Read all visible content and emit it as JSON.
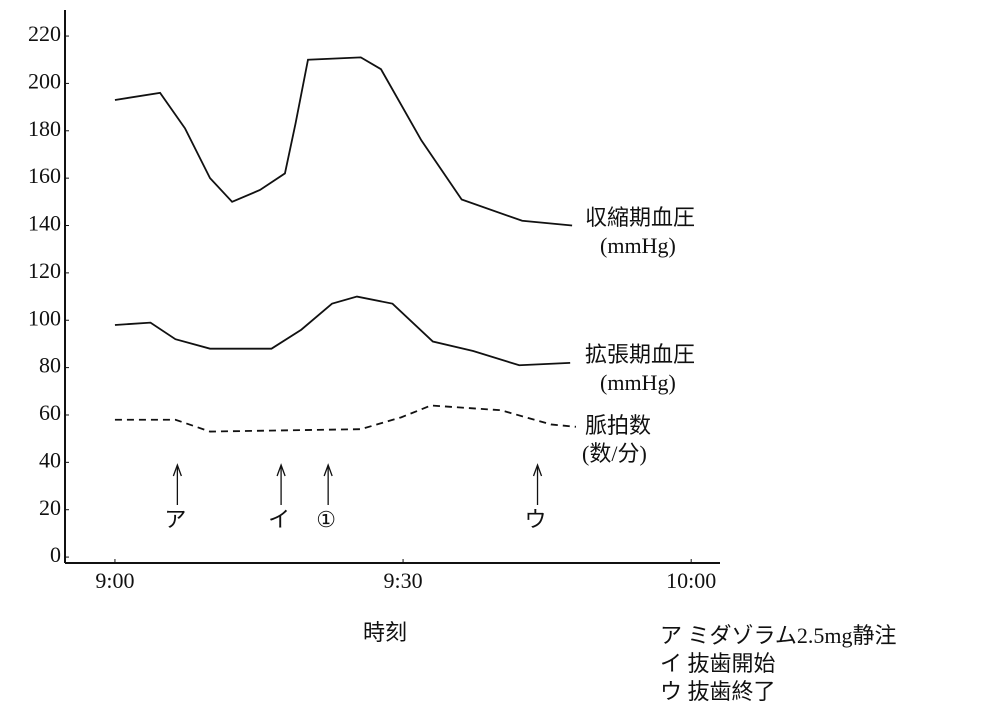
{
  "chart_data": {
    "type": "line",
    "xlabel": "時刻",
    "xlim": [
      -5.2,
      63
    ],
    "xticks": [
      {
        "value": 0,
        "label": "9:00"
      },
      {
        "value": 30,
        "label": "9:30"
      },
      {
        "value": 60,
        "label": "10:00"
      }
    ],
    "ylim": [
      -2.5,
      231
    ],
    "yticks": [
      0,
      20,
      40,
      60,
      80,
      100,
      120,
      140,
      160,
      180,
      200,
      220
    ],
    "series": [
      {
        "name": "収縮期血圧",
        "unit": "(mmHg)",
        "color": "#111111",
        "dash": false,
        "x": [
          0,
          4.7,
          7.3,
          9.9,
          12.2,
          15.1,
          17.7,
          18.8,
          20.1,
          25.6,
          27.7,
          31.9,
          36.1,
          42.4,
          47.6
        ],
        "values": [
          193,
          196,
          181,
          160,
          150,
          155,
          162,
          183,
          210,
          211,
          206,
          176,
          151,
          142,
          140
        ]
      },
      {
        "name": "拡張期血圧",
        "unit": "(mmHg)",
        "color": "#111111",
        "dash": false,
        "x": [
          0,
          3.7,
          6.3,
          9.9,
          16.3,
          19.4,
          22.6,
          25.2,
          28.9,
          33.1,
          37.3,
          42.1,
          47.4
        ],
        "values": [
          98,
          99,
          92,
          88,
          88,
          96,
          107,
          110,
          107,
          91,
          87,
          81,
          82
        ]
      },
      {
        "name": "脈拍数",
        "unit": "(数/分)",
        "color": "#111111",
        "dash": true,
        "x": [
          0,
          6.3,
          9.9,
          25.6,
          29.8,
          32.9,
          40.2,
          45.4,
          48
        ],
        "values": [
          58,
          58,
          53,
          54,
          59,
          64,
          62,
          56,
          55
        ]
      }
    ],
    "annotations": [
      {
        "label": "ア",
        "x": 6.5
      },
      {
        "label": "イ",
        "x": 17.3
      },
      {
        "label": "①",
        "x": 22.2
      },
      {
        "label": "ウ",
        "x": 44
      }
    ],
    "notes": [
      "ア ミダゾラム2.5mg静注",
      "イ 抜歯開始",
      "ウ 抜歯終了"
    ]
  }
}
